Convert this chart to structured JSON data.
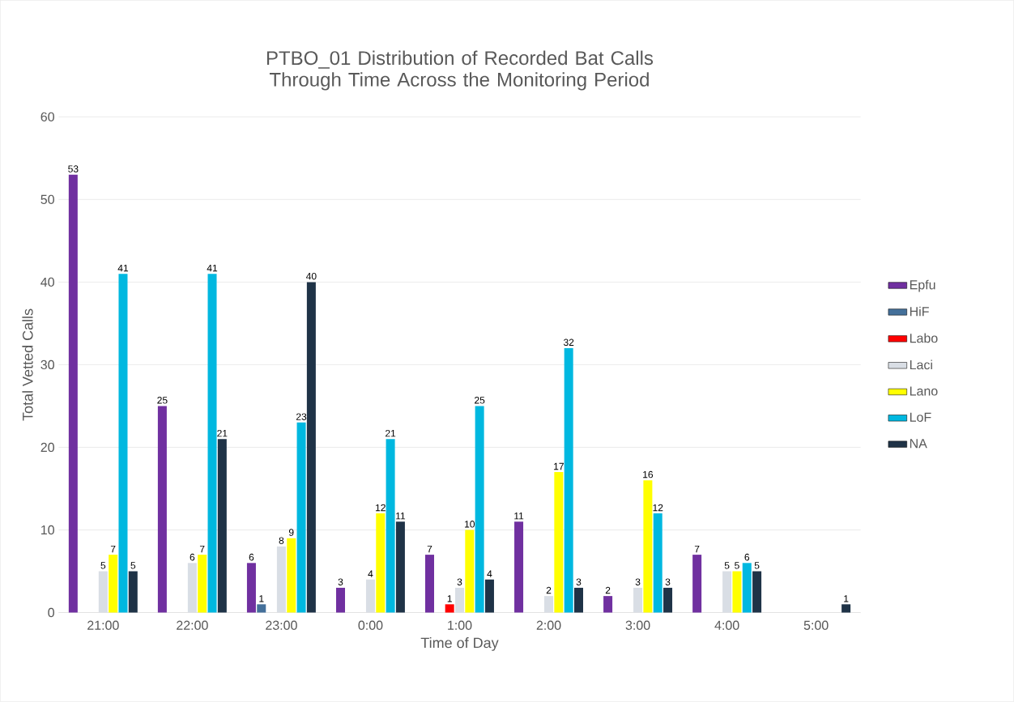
{
  "chart_data": {
    "type": "bar",
    "title": "PTBO_01 Distribution of Recorded Bat Calls Through Time Across the Monitoring Period",
    "xlabel": "Time of Day",
    "ylabel": "Total Vetted Calls",
    "categories": [
      "21:00",
      "22:00",
      "23:00",
      "0:00",
      "1:00",
      "2:00",
      "3:00",
      "4:00",
      "5:00"
    ],
    "series": [
      {
        "name": "Epfu",
        "color": "#7030a0",
        "values": [
          53,
          25,
          6,
          3,
          7,
          11,
          2,
          7,
          0
        ],
        "value_labels": [
          "53",
          "25",
          "6",
          "3",
          "7",
          "11",
          "2",
          "7",
          null
        ]
      },
      {
        "name": "HiF",
        "color": "#44709a",
        "values": [
          0,
          0,
          1,
          0,
          0,
          0,
          0,
          0,
          0
        ],
        "value_labels": [
          null,
          null,
          "1",
          null,
          null,
          null,
          null,
          null,
          null
        ]
      },
      {
        "name": "Labo",
        "color": "#ff0000",
        "values": [
          0,
          0,
          0,
          0,
          1,
          0,
          0,
          0,
          0
        ],
        "value_labels": [
          null,
          null,
          null,
          null,
          "1",
          null,
          null,
          null,
          null
        ]
      },
      {
        "name": "Laci",
        "color": "#d9dee5",
        "values": [
          5,
          6,
          8,
          4,
          3,
          2,
          3,
          5,
          0
        ],
        "value_labels": [
          "5",
          "6",
          "8",
          "4",
          "3",
          "2",
          "3",
          "5",
          null
        ]
      },
      {
        "name": "Lano",
        "color": "#ffff00",
        "values": [
          7,
          7,
          9,
          12,
          10,
          17,
          16,
          5,
          0
        ],
        "value_labels": [
          "7",
          "7",
          "9",
          "12",
          "10",
          "17",
          "16",
          "5",
          null
        ]
      },
      {
        "name": "LoF",
        "color": "#00b8e0",
        "values": [
          41,
          41,
          23,
          21,
          25,
          32,
          12,
          6,
          0
        ],
        "value_labels": [
          "41",
          "41",
          "23",
          "21",
          "25",
          "32",
          "12",
          "6",
          null
        ]
      },
      {
        "name": "NA",
        "color": "#1f3347",
        "values": [
          5,
          21,
          40,
          11,
          4,
          3,
          3,
          5,
          1
        ],
        "value_labels": [
          "5",
          "21",
          "40",
          "11",
          "4",
          "3",
          "3",
          "5",
          "1"
        ]
      }
    ],
    "ylim": [
      0,
      60
    ],
    "yticks": [
      0,
      10,
      20,
      30,
      40,
      50,
      60
    ],
    "grid": "y",
    "legend": "right"
  }
}
